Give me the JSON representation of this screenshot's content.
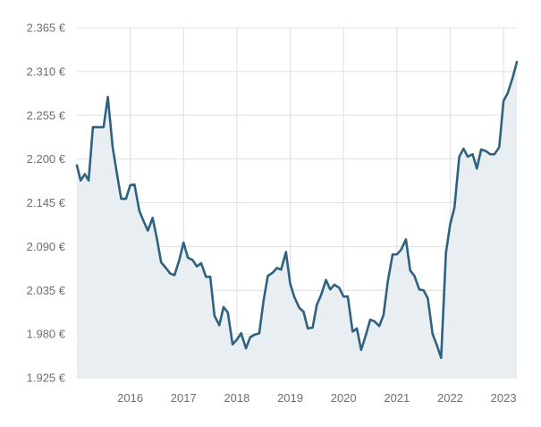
{
  "colors": {
    "line": "#2e6280",
    "area": "#e9eef3",
    "grid": "#dcdfe3",
    "text": "#6b6f76"
  },
  "chart_data": {
    "type": "area",
    "title": "",
    "xlabel": "",
    "ylabel": "",
    "grid": true,
    "legend": "none",
    "xlim": [
      2015.0,
      2023.25
    ],
    "ylim": [
      1925,
      2365
    ],
    "y_ticks": [
      {
        "value": 1925,
        "label": "1.925 €"
      },
      {
        "value": 1980,
        "label": "1.980 €"
      },
      {
        "value": 2035,
        "label": "2.035 €"
      },
      {
        "value": 2090,
        "label": "2.090 €"
      },
      {
        "value": 2145,
        "label": "2.145 €"
      },
      {
        "value": 2200,
        "label": "2.200 €"
      },
      {
        "value": 2255,
        "label": "2.255 €"
      },
      {
        "value": 2310,
        "label": "2.310 €"
      },
      {
        "value": 2365,
        "label": "2.365 €"
      }
    ],
    "x_ticks": [
      {
        "value": 2016,
        "label": "2016"
      },
      {
        "value": 2017,
        "label": "2017"
      },
      {
        "value": 2018,
        "label": "2018"
      },
      {
        "value": 2019,
        "label": "2019"
      },
      {
        "value": 2020,
        "label": "2020"
      },
      {
        "value": 2021,
        "label": "2021"
      },
      {
        "value": 2022,
        "label": "2022"
      },
      {
        "value": 2023,
        "label": "2023"
      }
    ],
    "series": [
      {
        "x": [
          2015.0,
          2015.07,
          2015.15,
          2015.22,
          2015.3,
          2015.38,
          2015.5,
          2015.58,
          2015.67,
          2015.75,
          2015.83,
          2015.92,
          2016.0,
          2016.08,
          2016.17,
          2016.25,
          2016.33,
          2016.42,
          2016.5,
          2016.58,
          2016.67,
          2016.75,
          2016.83,
          2016.92,
          2017.0,
          2017.08,
          2017.17,
          2017.25,
          2017.33,
          2017.42,
          2017.5,
          2017.58,
          2017.67,
          2017.75,
          2017.83,
          2017.92,
          2018.0,
          2018.08,
          2018.17,
          2018.25,
          2018.33,
          2018.42,
          2018.5,
          2018.58,
          2018.67,
          2018.75,
          2018.83,
          2018.92,
          2019.0,
          2019.08,
          2019.17,
          2019.25,
          2019.33,
          2019.42,
          2019.5,
          2019.58,
          2019.67,
          2019.75,
          2019.83,
          2019.92,
          2020.0,
          2020.08,
          2020.17,
          2020.25,
          2020.33,
          2020.42,
          2020.5,
          2020.58,
          2020.67,
          2020.75,
          2020.83,
          2020.92,
          2021.0,
          2021.08,
          2021.17,
          2021.25,
          2021.33,
          2021.42,
          2021.5,
          2021.58,
          2021.67,
          2021.75,
          2021.83,
          2021.92,
          2022.0,
          2022.08,
          2022.17,
          2022.25,
          2022.33,
          2022.42,
          2022.5,
          2022.58,
          2022.67,
          2022.75,
          2022.83,
          2022.92,
          2023.0,
          2023.08,
          2023.17,
          2023.25
        ],
        "values": [
          2192,
          2173,
          2181,
          2173,
          2240,
          2240,
          2240,
          2278,
          2215,
          2182,
          2150,
          2150,
          2167,
          2168,
          2135,
          2122,
          2110,
          2126,
          2100,
          2070,
          2063,
          2056,
          2054,
          2073,
          2095,
          2076,
          2073,
          2065,
          2069,
          2052,
          2052,
          2003,
          1991,
          2014,
          2007,
          1967,
          1973,
          1981,
          1962,
          1976,
          1979,
          1981,
          2022,
          2053,
          2057,
          2063,
          2061,
          2083,
          2043,
          2026,
          2013,
          2008,
          1987,
          1988,
          2017,
          2029,
          2048,
          2036,
          2042,
          2038,
          2027,
          2027,
          1983,
          1987,
          1960,
          1979,
          1998,
          1996,
          1990,
          2004,
          2046,
          2080,
          2080,
          2086,
          2099,
          2060,
          2053,
          2036,
          2035,
          2025,
          1980,
          1966,
          1950,
          2082,
          2118,
          2139,
          2203,
          2213,
          2203,
          2206,
          2188,
          2212,
          2210,
          2206,
          2206,
          2215,
          2273,
          2283,
          2302,
          2322
        ]
      }
    ]
  }
}
